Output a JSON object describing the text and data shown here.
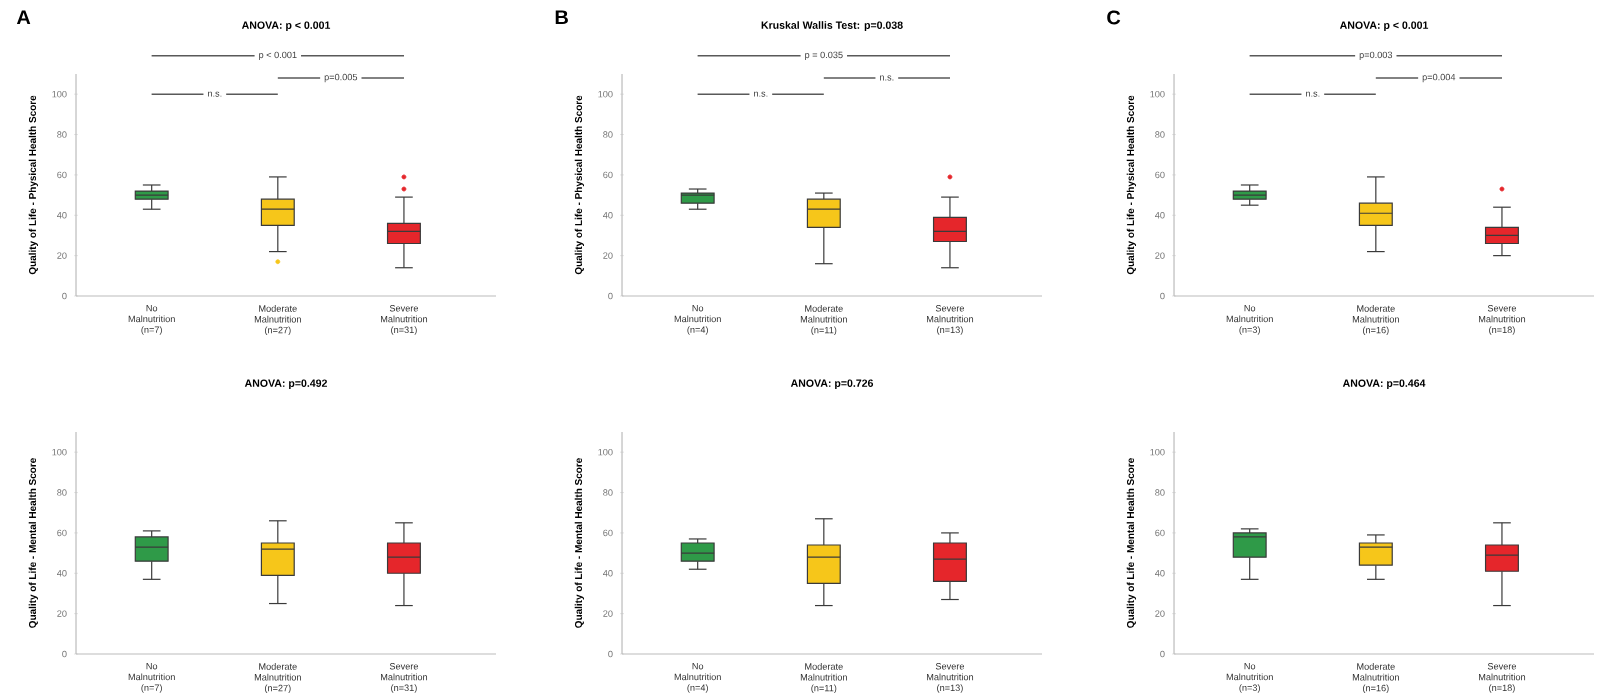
{
  "chart_data": [
    {
      "type": "box",
      "title": "ANOVA: p < 0.001",
      "ylabel": "Quality of Life - Physical Health Score",
      "categories": [
        "No Malnutrition (n=7)",
        "Moderate Malnutrition (n=27)",
        "Severe Malnutrition (n=31)"
      ],
      "colors": [
        "#2f9a48",
        "#f6c61a",
        "#e5262b"
      ],
      "ylim": [
        0,
        110
      ],
      "yticks": [
        0,
        20,
        40,
        60,
        80,
        100
      ],
      "annotations": [
        "A",
        "p < 0.001",
        "n.s.",
        "p=0.005"
      ],
      "boxes": [
        {
          "low": 43,
          "q1": 48,
          "median": 50,
          "q3": 52,
          "high": 55
        },
        {
          "low": 22,
          "q1": 35,
          "median": 43,
          "q3": 48,
          "high": 59,
          "outliers": [
            17
          ]
        },
        {
          "low": 14,
          "q1": 26,
          "median": 32,
          "q3": 36,
          "high": 49,
          "outliers": [
            53,
            59
          ]
        }
      ]
    },
    {
      "type": "box",
      "title": "Kruskal Wallis Test: p=0.038",
      "ylabel": "Quality of Life - Physical Health Score",
      "categories": [
        "No Malnutrition (n=4)",
        "Moderate Malnutrition (n=11)",
        "Severe Malnutrition (n=13)"
      ],
      "colors": [
        "#2f9a48",
        "#f6c61a",
        "#e5262b"
      ],
      "ylim": [
        0,
        110
      ],
      "yticks": [
        0,
        20,
        40,
        60,
        80,
        100
      ],
      "annotations": [
        "B",
        "p = 0.035",
        "n.s.",
        "n.s."
      ],
      "boxes": [
        {
          "low": 43,
          "q1": 46,
          "median": 50,
          "q3": 51,
          "high": 53
        },
        {
          "low": 16,
          "q1": 34,
          "median": 43,
          "q3": 48,
          "high": 51
        },
        {
          "low": 14,
          "q1": 27,
          "median": 32,
          "q3": 39,
          "high": 49,
          "outliers": [
            59
          ]
        }
      ]
    },
    {
      "type": "box",
      "title": "ANOVA: p < 0.001",
      "ylabel": "Quality of Life - Physical Health Score",
      "categories": [
        "No Malnutrition (n=3)",
        "Moderate Malnutrition (n=16)",
        "Severe Malnutrition (n=18)"
      ],
      "colors": [
        "#2f9a48",
        "#f6c61a",
        "#e5262b"
      ],
      "ylim": [
        0,
        110
      ],
      "yticks": [
        0,
        20,
        40,
        60,
        80,
        100
      ],
      "annotations": [
        "C",
        "p=0.003",
        "n.s.",
        "p=0.004"
      ],
      "boxes": [
        {
          "low": 45,
          "q1": 48,
          "median": 50,
          "q3": 52,
          "high": 55
        },
        {
          "low": 22,
          "q1": 35,
          "median": 41,
          "q3": 46,
          "high": 59
        },
        {
          "low": 20,
          "q1": 26,
          "median": 30,
          "q3": 34,
          "high": 44,
          "outliers": [
            53
          ]
        }
      ]
    },
    {
      "type": "box",
      "title": "ANOVA: p=0.492",
      "ylabel": "Quality of Life - Mental Health Score",
      "categories": [
        "No Malnutrition (n=7)",
        "Moderate Malnutrition (n=27)",
        "Severe Malnutrition (n=31)"
      ],
      "colors": [
        "#2f9a48",
        "#f6c61a",
        "#e5262b"
      ],
      "ylim": [
        0,
        110
      ],
      "yticks": [
        0,
        20,
        40,
        60,
        80,
        100
      ],
      "boxes": [
        {
          "low": 37,
          "q1": 46,
          "median": 53,
          "q3": 58,
          "high": 61
        },
        {
          "low": 25,
          "q1": 39,
          "median": 52,
          "q3": 55,
          "high": 66
        },
        {
          "low": 24,
          "q1": 40,
          "median": 48,
          "q3": 55,
          "high": 65
        }
      ]
    },
    {
      "type": "box",
      "title": "ANOVA: p=0.726",
      "ylabel": "Quality of Life - Mental Health Score",
      "categories": [
        "No Malnutrition (n=4)",
        "Moderate Malnutrition (n=11)",
        "Severe Malnutrition (n=13)"
      ],
      "colors": [
        "#2f9a48",
        "#f6c61a",
        "#e5262b"
      ],
      "ylim": [
        0,
        110
      ],
      "yticks": [
        0,
        20,
        40,
        60,
        80,
        100
      ],
      "boxes": [
        {
          "low": 42,
          "q1": 46,
          "median": 50,
          "q3": 55,
          "high": 57
        },
        {
          "low": 24,
          "q1": 35,
          "median": 48,
          "q3": 54,
          "high": 67
        },
        {
          "low": 27,
          "q1": 36,
          "median": 47,
          "q3": 55,
          "high": 60
        }
      ]
    },
    {
      "type": "box",
      "title": "ANOVA: p=0.464",
      "ylabel": "Quality of Life - Mental Health Score",
      "categories": [
        "No Malnutrition (n=3)",
        "Moderate Malnutrition (n=16)",
        "Severe Malnutrition (n=18)"
      ],
      "colors": [
        "#2f9a48",
        "#f6c61a",
        "#e5262b"
      ],
      "ylim": [
        0,
        110
      ],
      "yticks": [
        0,
        20,
        40,
        60,
        80,
        100
      ],
      "boxes": [
        {
          "low": 37,
          "q1": 48,
          "median": 58,
          "q3": 60,
          "high": 62
        },
        {
          "low": 37,
          "q1": 44,
          "median": 53,
          "q3": 55,
          "high": 59
        },
        {
          "low": 24,
          "q1": 41,
          "median": 49,
          "q3": 54,
          "high": 65
        }
      ]
    }
  ]
}
